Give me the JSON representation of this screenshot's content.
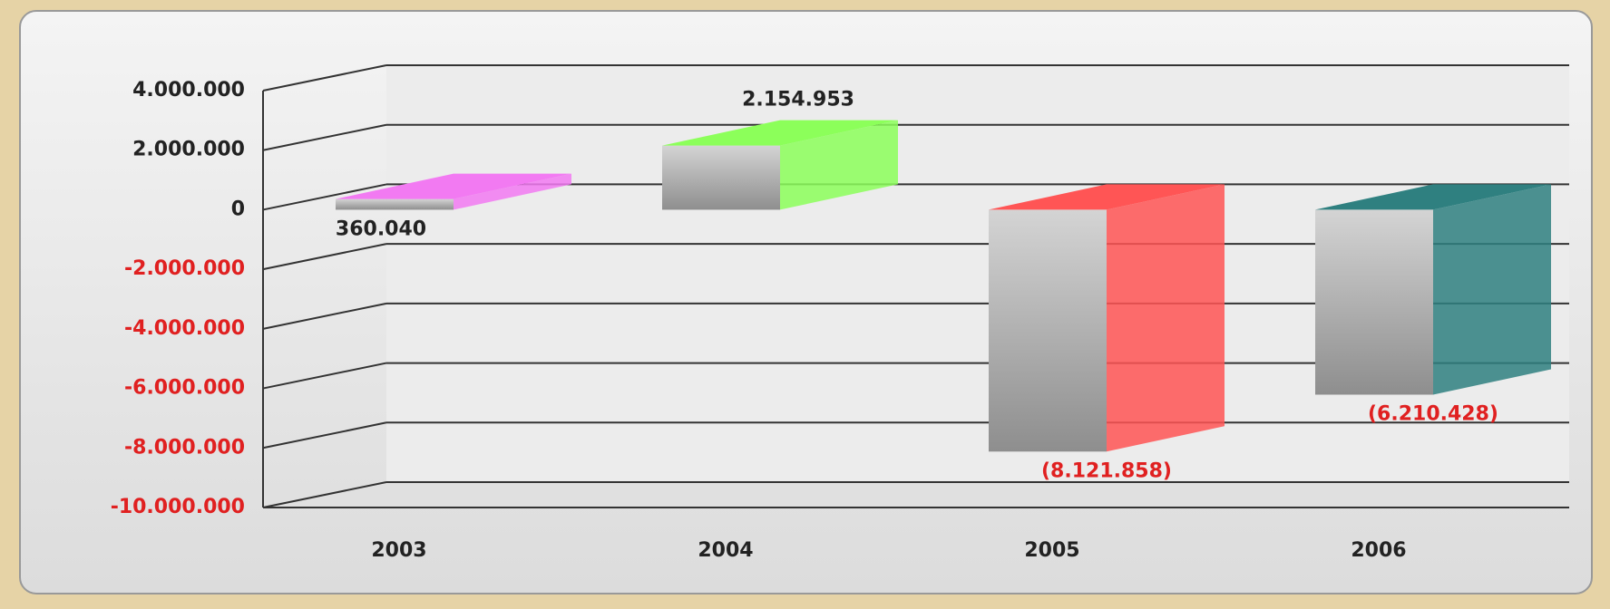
{
  "chart_data": {
    "type": "bar3d",
    "categories": [
      "2003",
      "2004",
      "2005",
      "2006"
    ],
    "values": [
      360040,
      2154953,
      -8121858,
      -6210428
    ],
    "value_labels": [
      "360.040",
      "2.154.953",
      "(8.121.858)",
      "(6.210.428)"
    ],
    "colors": [
      "#f27af2",
      "#8cff5a",
      "#ff5555",
      "#2f8080"
    ],
    "ylim": [
      -10000000,
      4000000
    ],
    "yticks": [
      {
        "value": 4000000,
        "label": "4.000.000"
      },
      {
        "value": 2000000,
        "label": "2.000.000"
      },
      0,
      {
        "value": -2000000,
        "label": "-2.000.000"
      },
      {
        "value": -4000000,
        "label": "-4.000.000"
      },
      {
        "value": -6000000,
        "label": "-6.000.000"
      },
      {
        "value": -8000000,
        "label": "-8.000.000"
      },
      {
        "value": -10000000,
        "label": "-10.000.000"
      }
    ],
    "grid": true
  }
}
